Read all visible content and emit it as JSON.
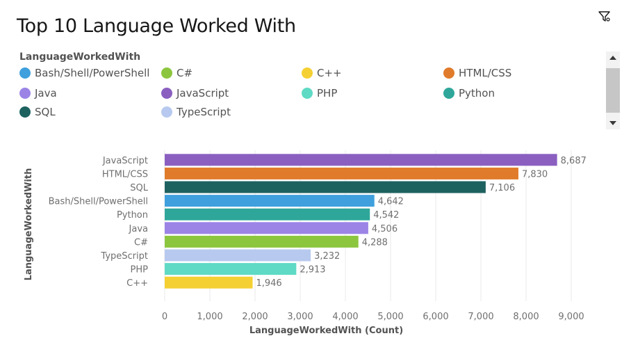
{
  "title": "Top 10 Language Worked With",
  "toolbar": {
    "filter_icon": "filter-icon"
  },
  "legend": {
    "title": "LanguageWorkedWith",
    "items": [
      {
        "label": "Bash/Shell/PowerShell",
        "color": "#3fa0dd"
      },
      {
        "label": "C#",
        "color": "#8cc63f"
      },
      {
        "label": "C++",
        "color": "#f5d033"
      },
      {
        "label": "HTML/CSS",
        "color": "#e07b2b"
      },
      {
        "label": "Java",
        "color": "#9b84e6"
      },
      {
        "label": "JavaScript",
        "color": "#8a5fc0"
      },
      {
        "label": "PHP",
        "color": "#5fdac4"
      },
      {
        "label": "Python",
        "color": "#2ea79a"
      },
      {
        "label": "SQL",
        "color": "#1e6260"
      },
      {
        "label": "TypeScript",
        "color": "#b7c9ee"
      }
    ]
  },
  "chart_data": {
    "type": "bar",
    "orientation": "horizontal",
    "title": "Top 10 Language Worked With",
    "xlabel": "LanguageWorkedWith (Count)",
    "ylabel": "LanguageWorkedWith",
    "xlim": [
      0,
      9000
    ],
    "xticks": [
      "0",
      "1,000",
      "2,000",
      "3,000",
      "4,000",
      "5,000",
      "6,000",
      "7,000",
      "8,000",
      "9,000"
    ],
    "grid": true,
    "legend_position": "top",
    "categories": [
      "JavaScript",
      "HTML/CSS",
      "SQL",
      "Bash/Shell/PowerShell",
      "Python",
      "Java",
      "C#",
      "TypeScript",
      "PHP",
      "C++"
    ],
    "values": [
      8687,
      7830,
      7106,
      4642,
      4542,
      4506,
      4288,
      3232,
      2913,
      1946
    ],
    "value_labels": [
      "8,687",
      "7,830",
      "7,106",
      "4,642",
      "4,542",
      "4,506",
      "4,288",
      "3,232",
      "2,913",
      "1,946"
    ],
    "colors": [
      "#8a5fc0",
      "#e07b2b",
      "#1e6260",
      "#3fa0dd",
      "#2ea79a",
      "#9b84e6",
      "#8cc63f",
      "#b7c9ee",
      "#5fdac4",
      "#f5d033"
    ]
  }
}
